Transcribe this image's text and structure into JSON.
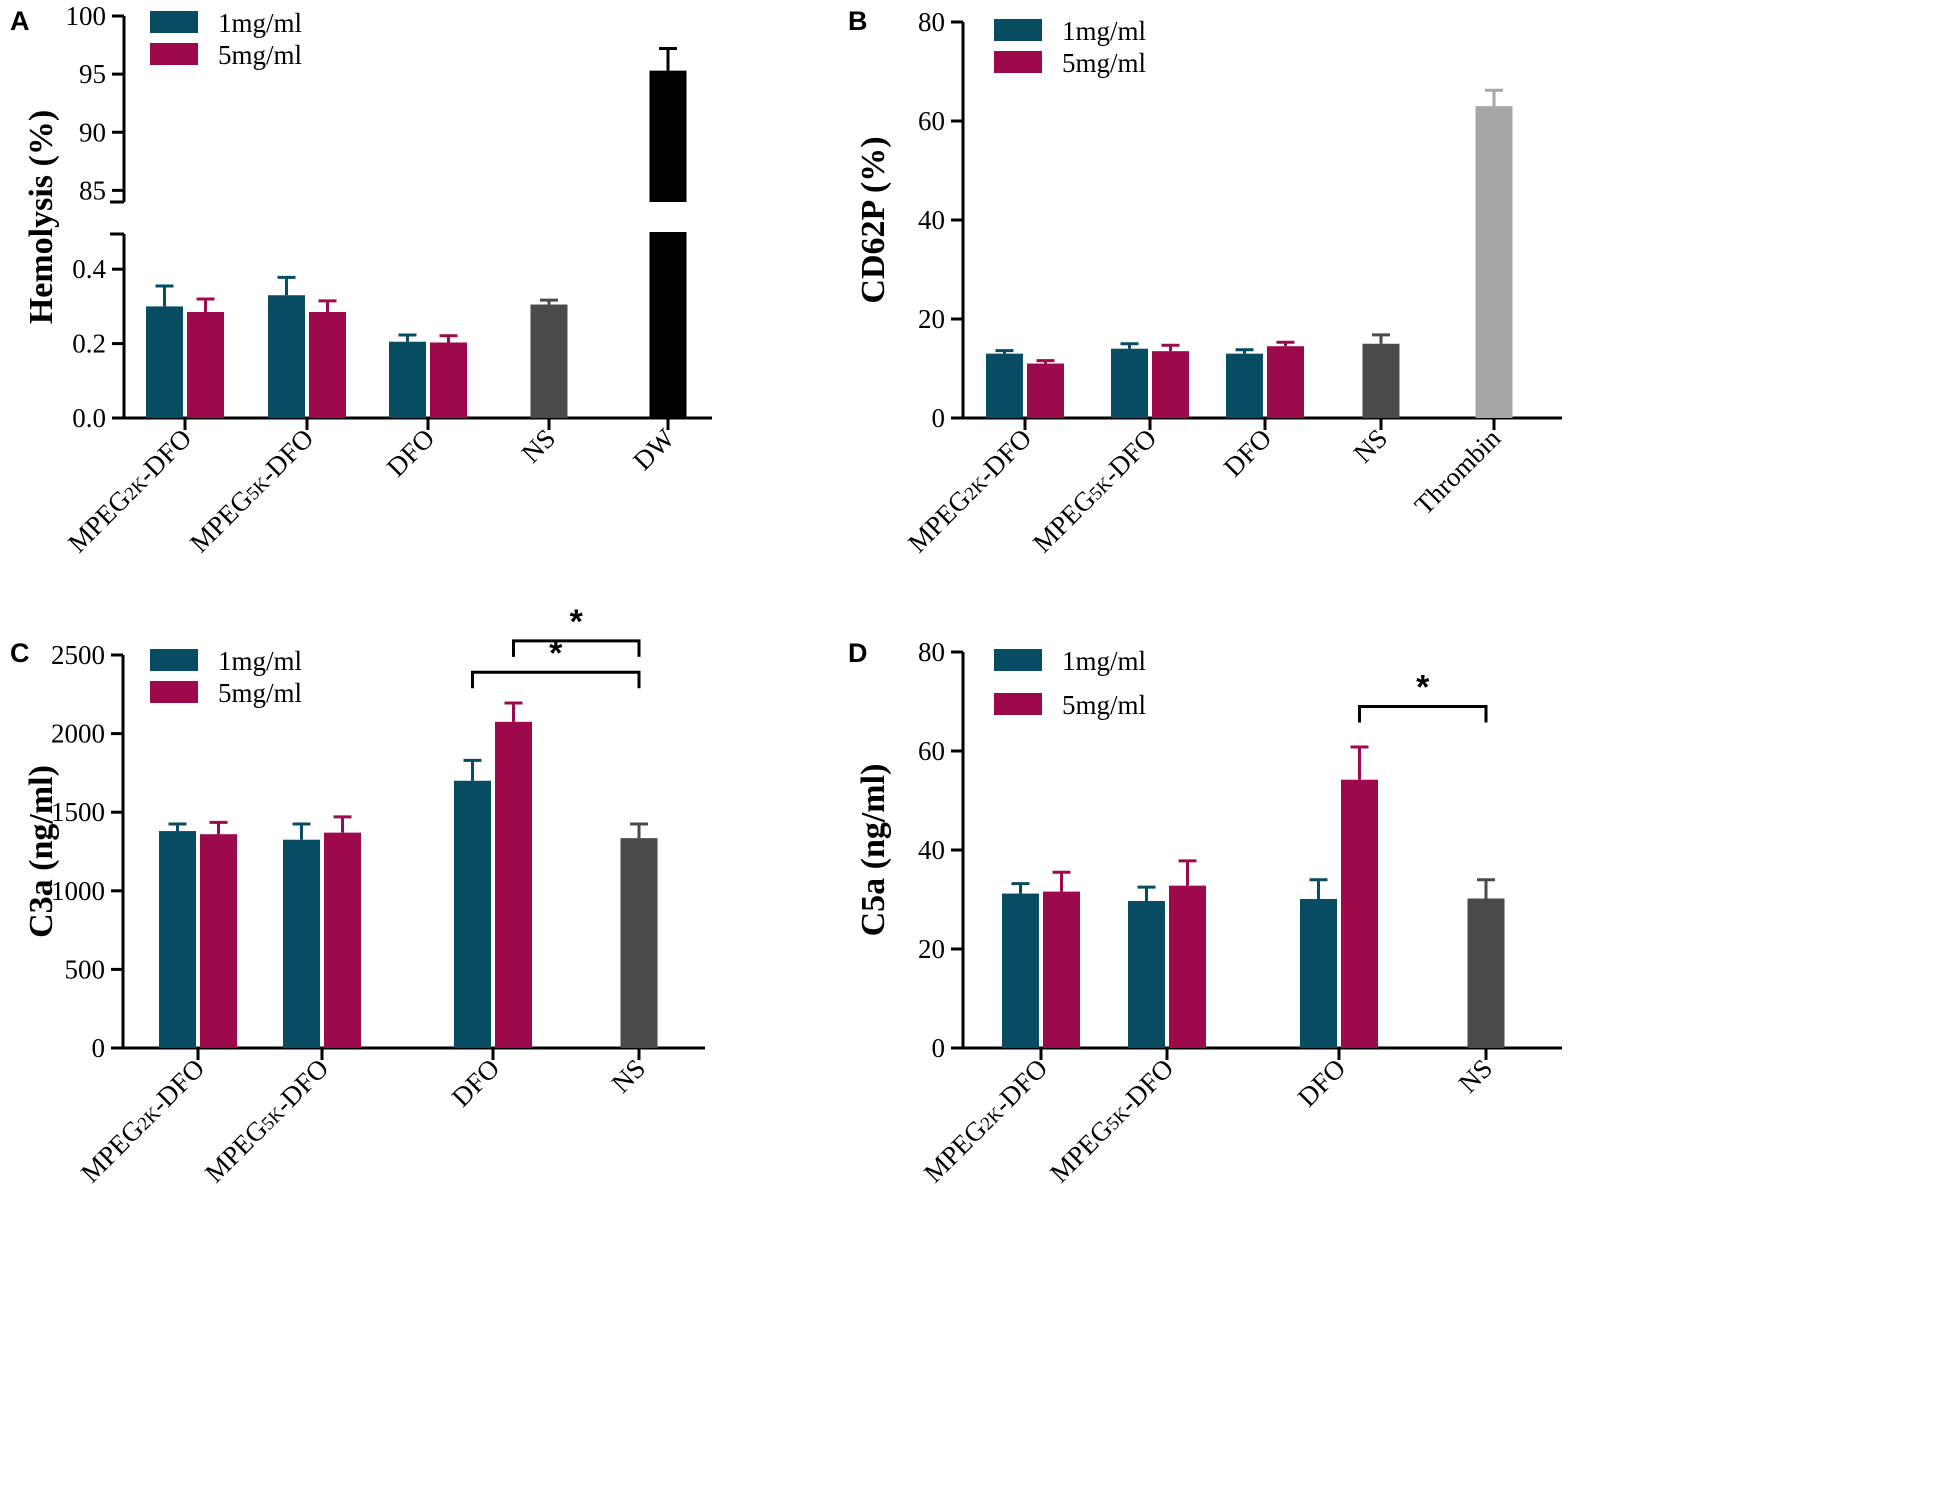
{
  "colors": {
    "series1": "#084c61",
    "series2": "#9c0a4c",
    "ns": "#4a4a4a",
    "dw": "#000000",
    "thrombin": "#a6a6a6",
    "axis": "#000000"
  },
  "chart_data": [
    {
      "panel": "A",
      "type": "bar",
      "ylabel": "Hemolysis (%)",
      "broken_axis": true,
      "ylim_lower": [
        0,
        0.5
      ],
      "ylim_upper": [
        84,
        100
      ],
      "yticks_lower": [
        "0.0",
        "0.2",
        "0.4"
      ],
      "yticks_upper": [
        "85",
        "90",
        "95",
        "100"
      ],
      "categories": [
        "MPEG2K-DFO",
        "MPEG5K-DFO",
        "DFO",
        "NS",
        "DW"
      ],
      "series": [
        {
          "name": "1mg/ml",
          "values": [
            0.3,
            0.33,
            0.205,
            null,
            null
          ],
          "errors": [
            0.055,
            0.048,
            0.018,
            null,
            null
          ]
        },
        {
          "name": "5mg/ml",
          "values": [
            0.285,
            0.285,
            0.203,
            null,
            null
          ],
          "errors": [
            0.035,
            0.03,
            0.018,
            null,
            null
          ]
        }
      ],
      "controls": [
        {
          "category": "NS",
          "value": 0.305,
          "error": 0.012,
          "color_key": "ns"
        },
        {
          "category": "DW",
          "value": 95.3,
          "error": 1.9,
          "color_key": "dw"
        }
      ],
      "significance": []
    },
    {
      "panel": "B",
      "type": "bar",
      "ylabel": "CD62P (%)",
      "ylim": [
        0,
        80
      ],
      "yticks": [
        "0",
        "20",
        "40",
        "60",
        "80"
      ],
      "categories": [
        "MPEG2K-DFO",
        "MPEG5K-DFO",
        "DFO",
        "NS",
        "Thrombin"
      ],
      "series": [
        {
          "name": "1mg/ml",
          "values": [
            13,
            14,
            13,
            null,
            null
          ],
          "errors": [
            0.6,
            1.0,
            0.8,
            null,
            null
          ]
        },
        {
          "name": "5mg/ml",
          "values": [
            11,
            13.5,
            14.5,
            null,
            null
          ],
          "errors": [
            0.6,
            1.2,
            0.8,
            null,
            null
          ]
        }
      ],
      "controls": [
        {
          "category": "NS",
          "value": 15,
          "error": 1.8,
          "color_key": "ns"
        },
        {
          "category": "Thrombin",
          "value": 63,
          "error": 3.2,
          "color_key": "thrombin"
        }
      ],
      "significance": []
    },
    {
      "panel": "C",
      "type": "bar",
      "ylabel": "C3a (ng/ml)",
      "ylim": [
        0,
        2500
      ],
      "yticks": [
        "0",
        "500",
        "1000",
        "1500",
        "2000",
        "2500"
      ],
      "categories": [
        "MPEG2K-DFO",
        "MPEG5K-DFO",
        "DFO",
        "NS"
      ],
      "series": [
        {
          "name": "1mg/ml",
          "values": [
            1380,
            1325,
            1700,
            null
          ],
          "errors": [
            45,
            100,
            130,
            null
          ]
        },
        {
          "name": "5mg/ml",
          "values": [
            1360,
            1370,
            2075,
            null
          ],
          "errors": [
            75,
            100,
            120,
            null
          ]
        }
      ],
      "controls": [
        {
          "category": "NS",
          "value": 1335,
          "error": 90,
          "color_key": "ns"
        }
      ],
      "significance": [
        {
          "from": "DFO-5mg/ml",
          "to": "NS",
          "level": 2590,
          "label": "*"
        },
        {
          "from": "DFO-1mg/ml",
          "to": "NS",
          "level": 2390,
          "label": "*"
        }
      ]
    },
    {
      "panel": "D",
      "type": "bar",
      "ylabel": "C5a (ng/ml)",
      "ylim": [
        0,
        80
      ],
      "yticks": [
        "0",
        "20",
        "40",
        "60",
        "80"
      ],
      "categories": [
        "MPEG2K-DFO",
        "MPEG5K-DFO",
        "DFO",
        "NS"
      ],
      "series": [
        {
          "name": "1mg/ml",
          "values": [
            31.2,
            29.7,
            30.1,
            null
          ],
          "errors": [
            2.0,
            2.8,
            3.9,
            null
          ]
        },
        {
          "name": "5mg/ml",
          "values": [
            31.6,
            32.8,
            54.2,
            null
          ],
          "errors": [
            3.9,
            5.0,
            6.6,
            null
          ]
        }
      ],
      "controls": [
        {
          "category": "NS",
          "value": 30.2,
          "error": 3.8,
          "color_key": "ns"
        }
      ],
      "significance": [
        {
          "from": "DFO-5mg/ml",
          "to": "NS",
          "level": 69,
          "label": "*"
        }
      ]
    }
  ]
}
